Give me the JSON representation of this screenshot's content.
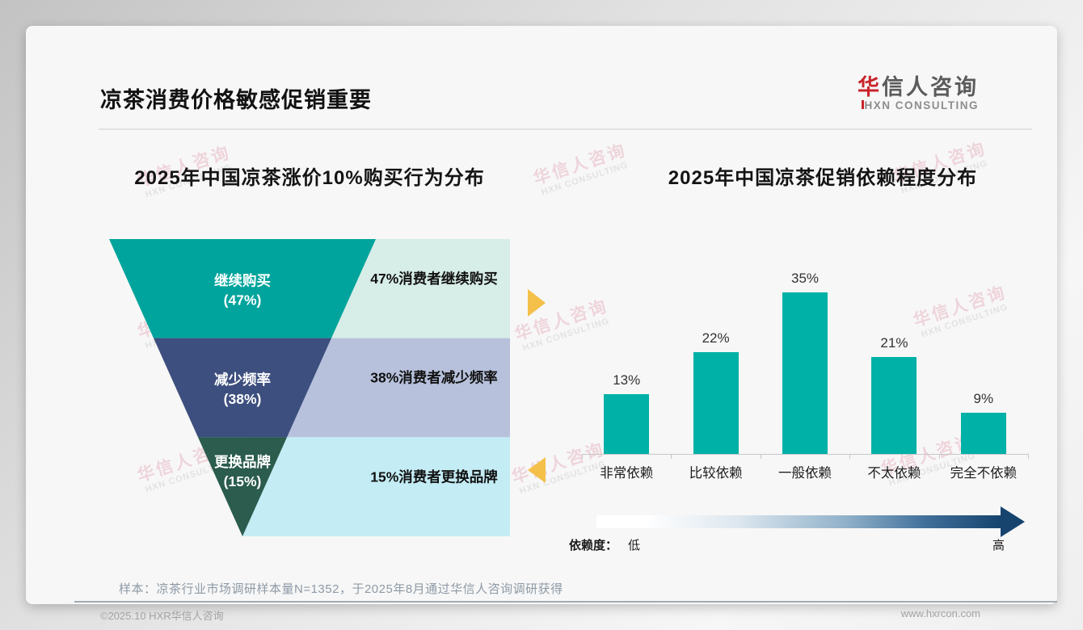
{
  "slide": {
    "title": "凉茶消费价格敏感促销重要",
    "logo": {
      "zh_accent": "华",
      "zh_rest": "信人咨询",
      "en": "HXN CONSULTING"
    },
    "watermark": {
      "zh": "华信人咨询",
      "en": "HXN CONSULTING"
    },
    "sample_note": "样本：凉茶行业市场调研样本量N=1352，于2025年8月通过华信人咨询调研获得",
    "footer": {
      "copyright": "©2025.10 HXR华信人咨询",
      "website": "www.hxrcon.com"
    }
  },
  "accents": {
    "arrow_yellow": "#f5c04a",
    "logo_red": "#c9242b"
  },
  "chart_data": [
    {
      "type": "funnel",
      "title": "2025年中国凉茶涨价10%购买行为分布",
      "categories": [
        "继续购买",
        "减少频率",
        "更换品牌"
      ],
      "values": [
        47,
        38,
        15
      ],
      "stage_value_labels": [
        "(47%)",
        "(38%)",
        "(15%)"
      ],
      "side_notes": [
        "47%消费者继续购买",
        "38%消费者减少频率",
        "15%消费者更换品牌"
      ],
      "stage_colors": [
        "#00a49c",
        "#3d4f7e",
        "#2b5c4d"
      ],
      "panel_colors": [
        "#d7ede7",
        "#b7c1dc",
        "#c4ecf5"
      ]
    },
    {
      "type": "bar",
      "title": "2025年中国凉茶促销依赖程度分布",
      "categories": [
        "非常依赖",
        "比较依赖",
        "一般依赖",
        "不太依赖",
        "完全不依赖"
      ],
      "values": [
        13,
        22,
        35,
        21,
        9
      ],
      "value_labels": [
        "13%",
        "22%",
        "35%",
        "21%",
        "9%"
      ],
      "bar_color": "#00b1a7",
      "ylim": [
        0,
        40
      ],
      "grid": false,
      "scale": {
        "label": "依赖度：",
        "low": "低",
        "high": "高",
        "gradient_start": "#ffffff",
        "gradient_end": "#16446f"
      }
    }
  ]
}
